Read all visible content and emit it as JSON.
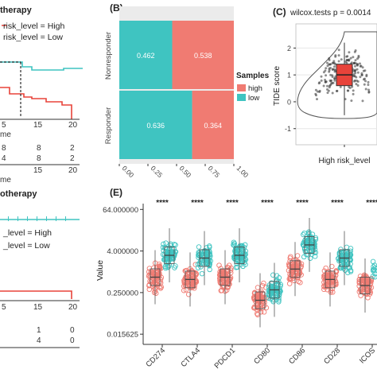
{
  "colors": {
    "high": "#f07b72",
    "low": "#3fc4c1",
    "axis": "#333333",
    "grid": "#e6e6e6",
    "panel_bg": "#ebebeb",
    "box": "#e8433a"
  },
  "panel_a": {
    "title_fragment": "therapy",
    "legend": [
      "risk_level = High",
      "risk_level = Low"
    ],
    "x_ticks": [
      "5",
      "15",
      "20"
    ],
    "x_label_fragment": "me",
    "risk_rows": [
      [
        "8",
        "8",
        "2"
      ],
      [
        "4",
        "8",
        "2"
      ]
    ],
    "x_ticks_bottom": [
      "15",
      "20"
    ],
    "x_label_bottom": "me"
  },
  "panel_d": {
    "title_fragment": "otherapy",
    "legend": [
      "_level = High",
      "_level = Low"
    ],
    "x_ticks": [
      "5",
      "15",
      "20"
    ],
    "risk_rows": [
      [
        "1",
        "0"
      ],
      [
        "4",
        "0"
      ]
    ]
  },
  "chart_data": [
    {
      "panel_label": "(B)",
      "type": "bar",
      "orientation": "horizontal",
      "stacked": true,
      "categories": [
        "Nonresponder",
        "Responder"
      ],
      "series": [
        {
          "name": "high",
          "values": [
            0.538,
            0.364
          ]
        },
        {
          "name": "low",
          "values": [
            0.462,
            0.636
          ]
        }
      ],
      "x_ticks": [
        "0.00",
        "0.25",
        "0.50",
        "0.75",
        "1.00"
      ],
      "xlim": [
        0,
        1
      ],
      "legend_title": "Samples",
      "legend_position": "right"
    },
    {
      "panel_label": "(C)",
      "type": "scatter",
      "subtype": "violin-box",
      "annotation": "wilcox.tests p = 0.0014",
      "ylabel": "TIDE score",
      "y_ticks": [
        "2",
        "1",
        "0",
        "-1"
      ],
      "xlabel": "High risk_level",
      "ylim": [
        -1.6,
        2.9
      ],
      "median": 1.0,
      "q1": 0.6,
      "q3": 1.4
    },
    {
      "panel_label": "(E)",
      "type": "scatter",
      "subtype": "box-jitter",
      "ylabel": "Value",
      "y_ticks": [
        "64.000000",
        "4.000000",
        "0.250000",
        "0.015625"
      ],
      "y_scale": "log2",
      "categories": [
        "CD274",
        "CTLA4",
        "PDCD1",
        "CD80",
        "CD86",
        "CD28",
        "ICOS"
      ],
      "significance": [
        "****",
        "****",
        "****",
        "****",
        "****",
        "****",
        "****"
      ],
      "series": [
        {
          "name": "high",
          "medians": [
            0.7,
            0.6,
            0.7,
            0.15,
            1.2,
            0.6,
            0.4
          ]
        },
        {
          "name": "low",
          "medians": [
            3.0,
            2.5,
            3.0,
            0.3,
            6.0,
            2.5,
            1.2
          ]
        }
      ]
    }
  ]
}
